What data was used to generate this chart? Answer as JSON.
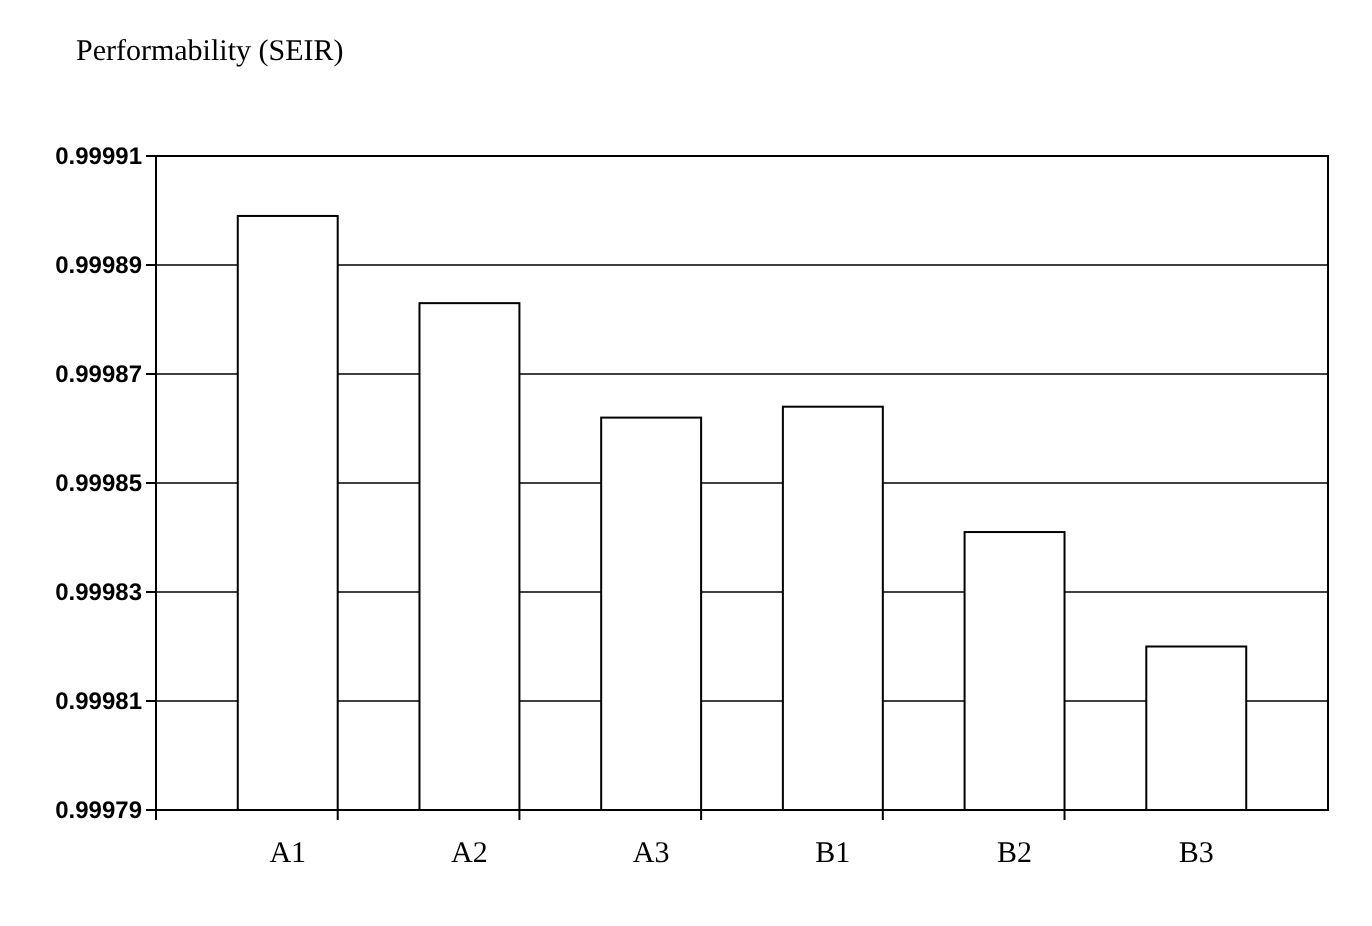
{
  "chart_data": {
    "type": "bar",
    "title": "Performability (SEIR)",
    "categories": [
      "A1",
      "A2",
      "A3",
      "B1",
      "B2",
      "B3"
    ],
    "values": [
      0.999899,
      0.999883,
      0.999862,
      0.999864,
      0.999841,
      0.99982
    ],
    "color": "#ffffff",
    "ylim": [
      0.99979,
      0.99991
    ],
    "yticks": [
      0.99979,
      0.99981,
      0.99983,
      0.99985,
      0.99987,
      0.99989,
      0.99991
    ],
    "grid": "y"
  }
}
